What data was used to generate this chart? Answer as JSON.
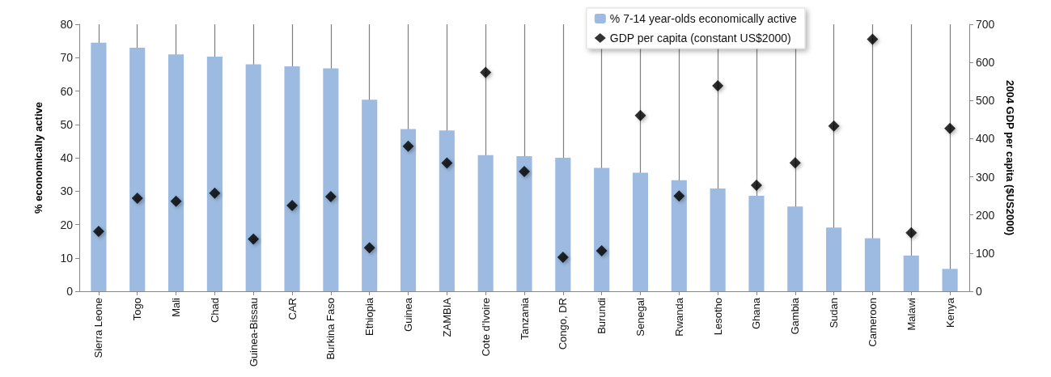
{
  "chart_data": {
    "type": "bar",
    "ylabel": "% economically active",
    "y2label": "2004 GDP per capita ($US2000)",
    "categories": [
      "Sierra Leone",
      "Togo",
      "Mali",
      "Chad",
      "Guinea-Bissau",
      "CAR",
      "Burkina Faso",
      "Ethiopia",
      "Guinea",
      "ZAMBIA",
      "Cote d'Ivoire",
      "Tanzania",
      "Congo, DR",
      "Burundi",
      "Senegal",
      "Rwanda",
      "Lesotho",
      "Ghana",
      "Gambia",
      "Sudan",
      "Cameroon",
      "Malawi",
      "Kenya"
    ],
    "series": [
      {
        "name": "% 7-14 year-olds economically active",
        "color": "#9dbbe0",
        "values": [
          74.5,
          73,
          71,
          70.3,
          68,
          67.4,
          66.8,
          57.4,
          48.6,
          48.2,
          40.8,
          40.5,
          40,
          37,
          35.5,
          33.3,
          30.8,
          28.6,
          25.4,
          19.1,
          15.9,
          10.7,
          6.7
        ]
      },
      {
        "name": "GDP per capita (constant US$2000)",
        "type": "scatter",
        "axis": "y2",
        "marker": "diamond",
        "color": "#000000",
        "values": [
          157,
          244,
          236,
          257,
          137,
          225,
          248,
          114,
          380,
          336,
          574,
          314,
          89,
          106,
          461,
          250,
          539,
          278,
          337,
          433,
          661,
          153,
          427
        ]
      }
    ],
    "ylim": [
      0,
      80
    ],
    "yticks": [
      0,
      10,
      20,
      30,
      40,
      50,
      60,
      70,
      80
    ],
    "y2lim": [
      0,
      700
    ],
    "y2ticks": [
      0,
      100,
      200,
      300,
      400,
      500,
      600,
      700
    ],
    "grid": "x",
    "legend": "top"
  }
}
